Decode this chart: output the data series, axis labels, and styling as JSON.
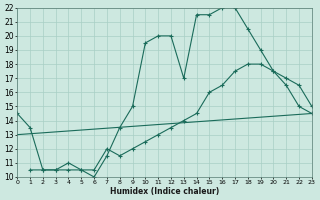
{
  "xlabel": "Humidex (Indice chaleur)",
  "bg_color": "#cde8e0",
  "grid_color": "#a8cfc5",
  "line_color": "#1a6b5a",
  "line1_x": [
    0,
    1,
    2,
    3,
    4,
    5,
    6,
    7,
    8,
    9,
    10,
    11,
    12,
    13,
    14,
    15,
    16,
    17,
    18,
    19,
    20,
    21,
    22,
    23
  ],
  "line1_y": [
    14.5,
    13.5,
    10.5,
    10.5,
    10.5,
    10.5,
    10.0,
    11.5,
    13.5,
    15.0,
    19.5,
    20.0,
    20.0,
    17.0,
    21.5,
    21.5,
    22.0,
    22.0,
    20.5,
    19.0,
    17.5,
    16.5,
    15.0,
    14.5
  ],
  "line2_x": [
    1,
    2,
    3,
    4,
    5,
    6,
    7,
    8,
    9,
    10,
    11,
    12,
    13,
    14,
    15,
    16,
    17,
    18,
    19,
    20,
    21,
    22,
    23
  ],
  "line2_y": [
    10.5,
    10.5,
    10.5,
    11.0,
    10.5,
    10.5,
    12.0,
    11.5,
    12.0,
    12.5,
    13.0,
    13.5,
    14.0,
    14.5,
    16.0,
    16.5,
    17.5,
    18.0,
    18.0,
    17.5,
    17.0,
    16.5,
    15.0
  ],
  "line3_x": [
    0,
    23
  ],
  "line3_y": [
    13.0,
    14.5
  ],
  "ylim": [
    10,
    22
  ],
  "xlim": [
    0,
    23
  ],
  "yticks": [
    10,
    11,
    12,
    13,
    14,
    15,
    16,
    17,
    18,
    19,
    20,
    21,
    22
  ],
  "xticks": [
    0,
    1,
    2,
    3,
    4,
    5,
    6,
    7,
    8,
    9,
    10,
    11,
    12,
    13,
    14,
    15,
    16,
    17,
    18,
    19,
    20,
    21,
    22,
    23
  ]
}
